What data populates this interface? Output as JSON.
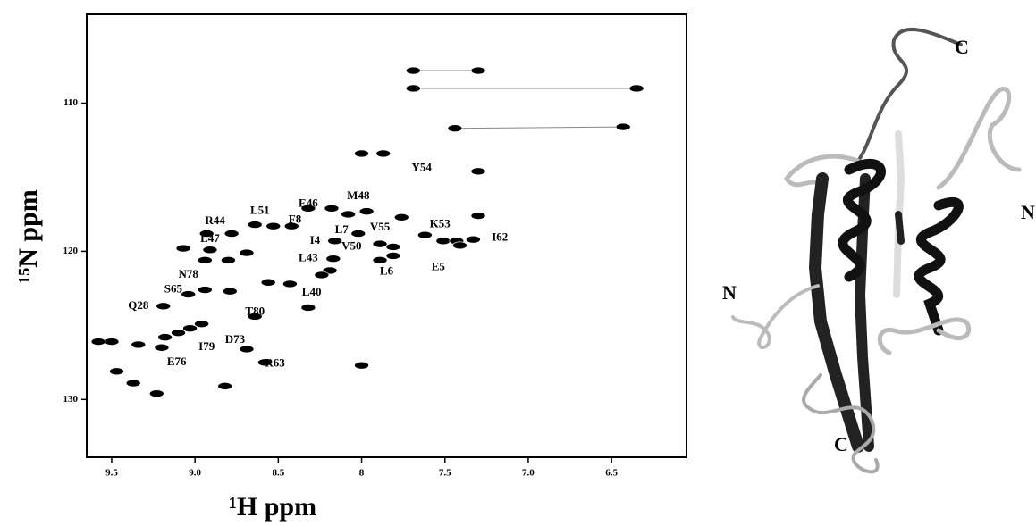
{
  "chart_data": {
    "type": "scatter",
    "x_label": "¹H ppm",
    "y_label": "¹⁵N ppm",
    "xlim": [
      9.65,
      6.05
    ],
    "ylim": [
      133.9,
      104
    ],
    "xticks": [
      9.5,
      {
        "value": 9,
        "label": "9.0"
      },
      8.5,
      8,
      7.5,
      {
        "value": 7,
        "label": "7.0"
      },
      6.5
    ],
    "yticks": [
      110,
      120,
      130
    ],
    "color": "#000000",
    "x": [
      7.69,
      7.3,
      7.69,
      6.35,
      7.44,
      6.43,
      7.87,
      8.0,
      7.3,
      7.3,
      8.32,
      8.18,
      7.97,
      8.08,
      7.76,
      8.53,
      8.42,
      8.64,
      8.78,
      8.93,
      8.16,
      8.02,
      7.81,
      7.89,
      7.62,
      7.51,
      7.43,
      7.33,
      7.41,
      8.91,
      9.07,
      8.69,
      8.8,
      8.94,
      7.89,
      7.81,
      8.17,
      8.19,
      8.24,
      8.56,
      8.43,
      8.94,
      9.04,
      8.79,
      9.19,
      8.32,
      8.64,
      8.96,
      9.03,
      9.5,
      9.34,
      9.58,
      9.18,
      9.1,
      9.2,
      8.69,
      8.58,
      8.0,
      9.47,
      9.37,
      9.23,
      8.82
    ],
    "y": [
      107.8,
      107.8,
      109.0,
      109.0,
      111.7,
      111.6,
      113.4,
      113.4,
      114.6,
      117.6,
      117.1,
      117.1,
      117.3,
      117.5,
      117.7,
      118.3,
      118.3,
      118.2,
      118.8,
      118.8,
      119.3,
      118.8,
      119.7,
      119.5,
      118.9,
      119.3,
      119.3,
      119.2,
      119.6,
      119.9,
      119.8,
      120.1,
      120.6,
      120.6,
      120.6,
      120.3,
      120.5,
      121.3,
      121.6,
      122.1,
      122.2,
      122.6,
      122.9,
      122.7,
      123.7,
      123.8,
      124.4,
      124.9,
      125.2,
      126.1,
      126.3,
      126.1,
      125.8,
      125.5,
      126.5,
      126.6,
      127.5,
      127.7,
      128.1,
      128.9,
      129.6,
      129.1
    ],
    "annotations": [
      {
        "text": "Y54",
        "x": 7.64,
        "y": 114.4
      },
      {
        "text": "M48",
        "x": 8.02,
        "y": 116.3
      },
      {
        "text": "E46",
        "x": 8.32,
        "y": 116.8
      },
      {
        "text": "L51",
        "x": 8.61,
        "y": 117.3
      },
      {
        "text": "F8",
        "x": 8.4,
        "y": 117.9
      },
      {
        "text": "R44",
        "x": 8.88,
        "y": 118.0
      },
      {
        "text": "L7",
        "x": 8.12,
        "y": 118.6
      },
      {
        "text": "V55",
        "x": 7.89,
        "y": 118.4
      },
      {
        "text": "K53",
        "x": 7.53,
        "y": 118.2
      },
      {
        "text": "I62",
        "x": 7.17,
        "y": 119.1
      },
      {
        "text": "I4",
        "x": 8.28,
        "y": 119.3
      },
      {
        "text": "L47",
        "x": 8.91,
        "y": 119.2
      },
      {
        "text": "L43",
        "x": 8.32,
        "y": 120.5
      },
      {
        "text": "V50",
        "x": 8.06,
        "y": 119.7
      },
      {
        "text": "L6",
        "x": 7.85,
        "y": 121.4
      },
      {
        "text": "E5",
        "x": 7.54,
        "y": 121.1
      },
      {
        "text": "N78",
        "x": 9.04,
        "y": 121.6
      },
      {
        "text": "S65",
        "x": 9.13,
        "y": 122.6
      },
      {
        "text": "L40",
        "x": 8.3,
        "y": 122.8
      },
      {
        "text": "Q28",
        "x": 9.34,
        "y": 123.7
      },
      {
        "text": "T80",
        "x": 8.64,
        "y": 124.1
      },
      {
        "text": "D73",
        "x": 8.76,
        "y": 126.0
      },
      {
        "text": "I79",
        "x": 8.93,
        "y": 126.5
      },
      {
        "text": "E76",
        "x": 9.11,
        "y": 127.5
      },
      {
        "text": "R63",
        "x": 8.52,
        "y": 127.6
      }
    ]
  },
  "structure": {
    "labels": [
      "C",
      "N",
      "N",
      "C"
    ]
  }
}
